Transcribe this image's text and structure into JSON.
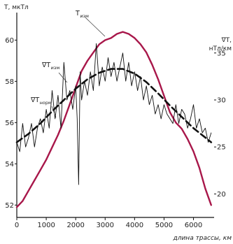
{
  "chart_data": {
    "type": "line",
    "title": "",
    "xlabel": "длина трассы, км",
    "ylabel_left": "Т, мкТл",
    "ylabel_right": [
      "∇Т,",
      "нТл/км"
    ],
    "xlim": [
      0,
      6700
    ],
    "ylim_left": [
      51.4,
      61.2
    ],
    "ylim_right": [
      17.5,
      39
    ],
    "x_ticks": [
      0,
      1000,
      2000,
      3000,
      4000,
      5000,
      6000
    ],
    "y_ticks_left": [
      52,
      54,
      56,
      58,
      60
    ],
    "y_ticks_right": [
      20,
      25,
      30,
      35
    ],
    "grid": false,
    "series": [
      {
        "label_main": "Т",
        "label_sub": "изм",
        "axis": "left",
        "style": "solid-thick",
        "color": "#a8174a",
        "x": [
          0,
          200,
          400,
          600,
          800,
          1000,
          1200,
          1400,
          1600,
          1800,
          2000,
          2200,
          2400,
          2600,
          2800,
          3000,
          3200,
          3400,
          3600,
          3800,
          4000,
          4200,
          4400,
          4600,
          4800,
          5000,
          5200,
          5400,
          5600,
          5800,
          6000,
          6200,
          6400,
          6600
        ],
        "y": [
          51.9,
          52.2,
          52.7,
          53.2,
          53.7,
          54.2,
          54.8,
          55.4,
          56.1,
          56.9,
          57.7,
          58.5,
          59.0,
          59.4,
          59.8,
          60.0,
          60.1,
          60.3,
          60.4,
          60.3,
          60.1,
          59.8,
          59.4,
          58.8,
          58.1,
          57.3,
          56.5,
          56.0,
          55.7,
          55.2,
          54.6,
          53.8,
          52.8,
          52.0
        ]
      },
      {
        "label_main": "∇Т",
        "label_sub": "изм",
        "axis": "right",
        "style": "solid-thin",
        "color": "#111111",
        "x": [
          0,
          100,
          200,
          300,
          400,
          500,
          600,
          700,
          800,
          900,
          1000,
          1100,
          1200,
          1300,
          1400,
          1500,
          1600,
          1700,
          1800,
          1900,
          2000,
          2050,
          2100,
          2150,
          2200,
          2300,
          2400,
          2500,
          2600,
          2700,
          2800,
          2900,
          3000,
          3100,
          3200,
          3300,
          3400,
          3500,
          3600,
          3700,
          3800,
          3900,
          4000,
          4100,
          4200,
          4300,
          4400,
          4500,
          4600,
          4700,
          4800,
          4900,
          5000,
          5100,
          5200,
          5300,
          5400,
          5500,
          5600,
          5700,
          5800,
          5900,
          6000,
          6100,
          6200,
          6300,
          6400,
          6500,
          6600
        ],
        "y": [
          25.5,
          24.5,
          27.5,
          25.0,
          26.0,
          27.5,
          25.0,
          27.0,
          28.0,
          26.5,
          29.0,
          27.0,
          31.0,
          28.0,
          30.5,
          27.0,
          34.0,
          30.0,
          31.0,
          29.0,
          31.5,
          28.0,
          21.0,
          33.0,
          30.0,
          32.0,
          30.5,
          33.0,
          31.0,
          36.0,
          31.5,
          33.5,
          32.0,
          34.5,
          32.5,
          34.0,
          32.0,
          33.5,
          35.0,
          32.0,
          34.0,
          31.5,
          33.0,
          31.0,
          32.5,
          30.0,
          31.5,
          29.5,
          30.5,
          28.5,
          29.5,
          28.0,
          29.5,
          28.5,
          28.0,
          27.5,
          29.5,
          27.5,
          29.0,
          28.5,
          27.0,
          28.0,
          29.5,
          27.0,
          28.0,
          26.5,
          27.0,
          25.5,
          26.5
        ]
      },
      {
        "label_main": "∇Т",
        "label_sub": "норм",
        "axis": "right",
        "style": "dashed-thick",
        "color": "#111111",
        "x": [
          0,
          400,
          800,
          1200,
          1600,
          2000,
          2400,
          2800,
          3200,
          3600,
          4000,
          4400,
          4800,
          5200,
          5600,
          6000,
          6400,
          6600
        ],
        "y": [
          25.5,
          26.4,
          27.5,
          28.8,
          30.0,
          31.2,
          32.2,
          32.9,
          33.3,
          33.3,
          32.8,
          31.9,
          30.7,
          29.4,
          28.2,
          27.0,
          26.0,
          25.5
        ]
      }
    ],
    "annotations": [
      {
        "main": "Т",
        "sub": "изм"
      },
      {
        "main": "∇Т",
        "sub": "изм"
      },
      {
        "main": "∇Т",
        "sub": "норм"
      }
    ]
  }
}
